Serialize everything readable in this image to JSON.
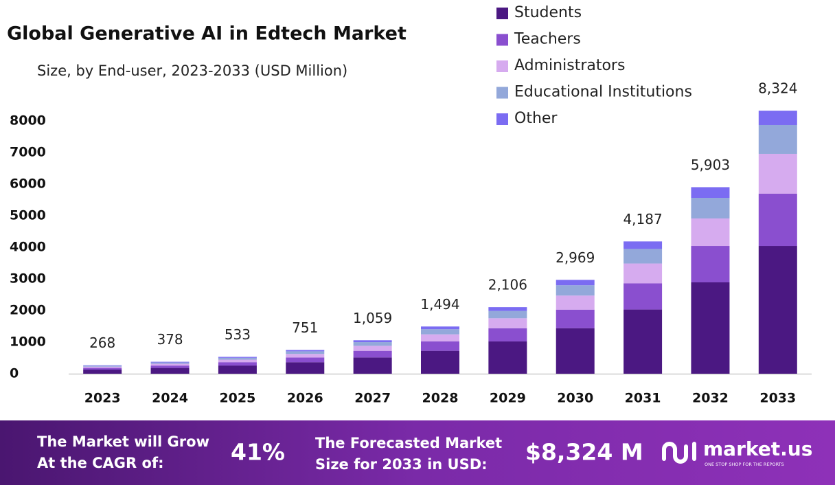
{
  "chart_data": {
    "type": "stacked_bar",
    "title": "Global Generative AI in Edtech Market",
    "subtitle": "Size, by End-user, 2023-2033 (USD Million)",
    "categories": [
      "2023",
      "2024",
      "2025",
      "2026",
      "2027",
      "2028",
      "2029",
      "2030",
      "2031",
      "2032",
      "2033"
    ],
    "series": [
      {
        "name": "Students",
        "color": "#4b1882",
        "values": [
          130,
          183,
          259,
          364,
          514,
          725,
          1021,
          1440,
          2031,
          2891,
          4043
        ]
      },
      {
        "name": "Teachers",
        "color": "#8a4fcf",
        "values": [
          53,
          75,
          106,
          149,
          210,
          296,
          417,
          588,
          829,
          1152,
          1653
        ]
      },
      {
        "name": "Administrators",
        "color": "#d6abef",
        "values": [
          40,
          57,
          80,
          113,
          159,
          224,
          316,
          445,
          628,
          870,
          1261
        ]
      },
      {
        "name": "Educational Institutions",
        "color": "#93a8da",
        "values": [
          30,
          42,
          58,
          83,
          116,
          164,
          232,
          327,
          460,
          652,
          913
        ]
      },
      {
        "name": "Other",
        "color": "#7b6cf2",
        "values": [
          15,
          21,
          30,
          42,
          60,
          85,
          120,
          169,
          239,
          338,
          454
        ]
      }
    ],
    "totals": {
      "values": [
        268,
        378,
        533,
        751,
        1059,
        1494,
        2106,
        2969,
        4187,
        5903,
        8324
      ],
      "value_labels": [
        "268",
        "378",
        "533",
        "751",
        "1,059",
        "1,494",
        "2,106",
        "2,969",
        "4,187",
        "5,903",
        "8,324"
      ]
    },
    "ylim": [
      0,
      8000
    ],
    "yticks": [
      0,
      1000,
      2000,
      3000,
      4000,
      5000,
      6000,
      7000,
      8000
    ],
    "grid": false,
    "legend": "top-right"
  },
  "footer": {
    "cagr_text": [
      "The Market will Grow",
      "At the CAGR of:"
    ],
    "cagr": "41%",
    "forecast_text": [
      "The Forecasted Market",
      "Size for 2033 in USD:"
    ],
    "forecast": "$8,324 M",
    "brand": "market.us",
    "tagline": "ONE STOP SHOP FOR THE REPORTS"
  }
}
